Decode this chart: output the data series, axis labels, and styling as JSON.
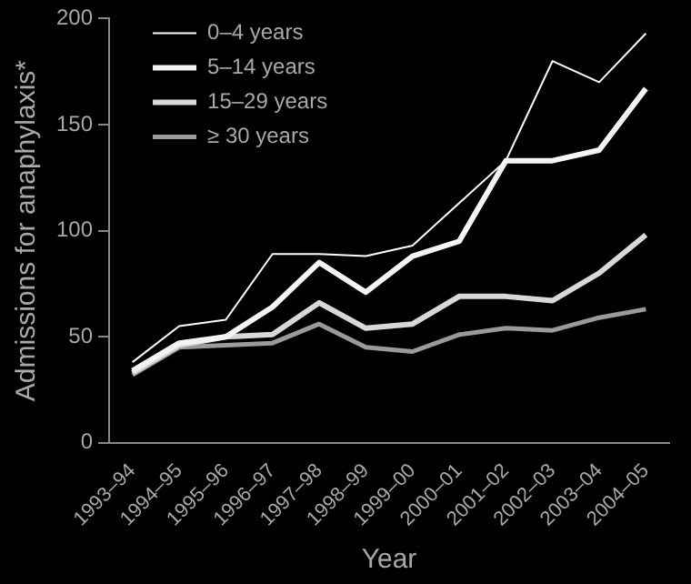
{
  "chart_data": {
    "type": "line",
    "xlabel": "Year",
    "ylabel": "Admissions for anaphylaxis*",
    "categories": [
      "1993–94",
      "1994–95",
      "1995–96",
      "1996–97",
      "1997–98",
      "1998–99",
      "1999–00",
      "2000–01",
      "2001–02",
      "2002–03",
      "2003–04",
      "2004–05"
    ],
    "series": [
      {
        "name": "0–4 years",
        "color": "#ffffff",
        "values": [
          38,
          55,
          58,
          89,
          89,
          88,
          93,
          113,
          133,
          180,
          170,
          193
        ]
      },
      {
        "name": "5–14 years",
        "color": "#f4f4f4",
        "values": [
          34,
          47,
          50,
          64,
          85,
          71,
          88,
          95,
          133,
          133,
          138,
          167
        ]
      },
      {
        "name": "15–29 years",
        "color": "#d8d8d8",
        "values": [
          33,
          46,
          50,
          51,
          66,
          54,
          56,
          69,
          69,
          67,
          80,
          98
        ]
      },
      {
        "name": "≥ 30 years",
        "color": "#9a9a9a",
        "values": [
          32,
          45,
          46,
          47,
          56,
          45,
          43,
          51,
          54,
          53,
          59,
          63
        ]
      }
    ],
    "ylim": [
      0,
      200
    ],
    "yticks": [
      0,
      50,
      100,
      150,
      200
    ],
    "grid": false,
    "legend": "top left",
    "marker": "none"
  }
}
